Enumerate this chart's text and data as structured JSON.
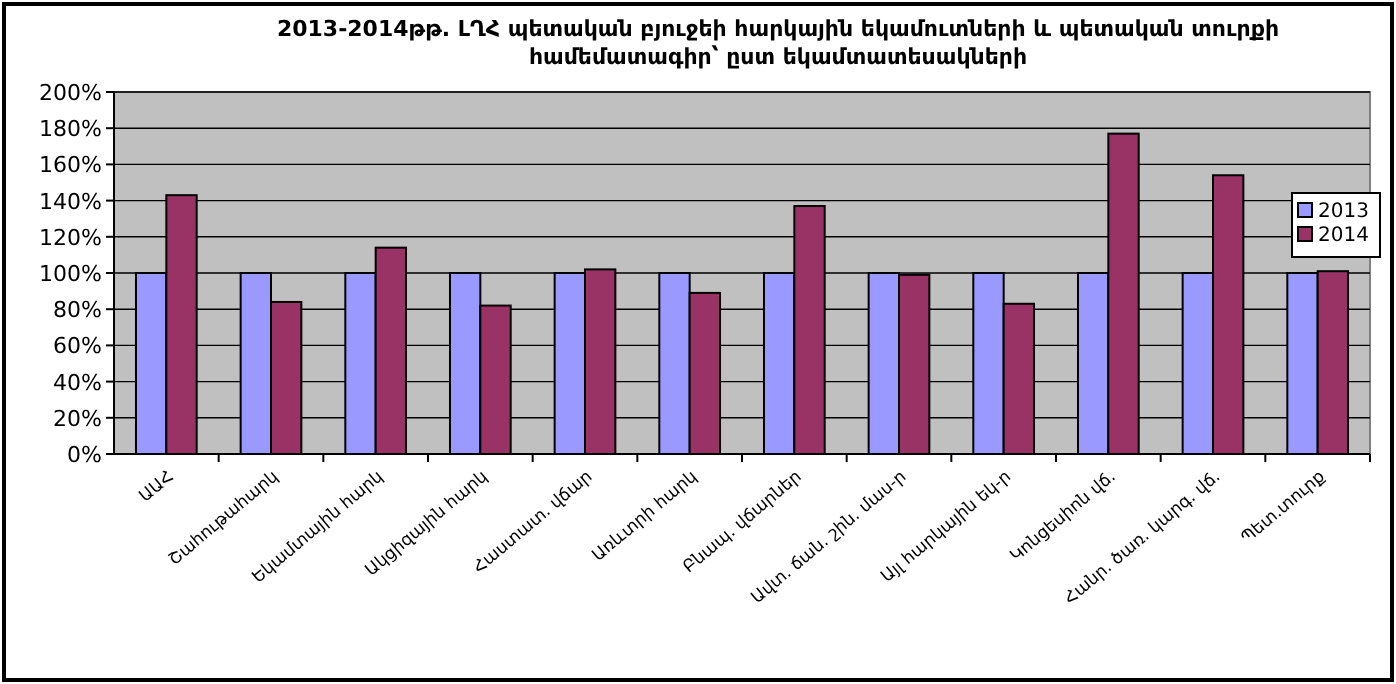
{
  "chart_data": {
    "type": "bar",
    "title": "2013-2014թթ. ԼՂՀ պետական բյուջեի հարկային եկամուտների և պետական տուրքի\nհամեմատագիր՝ ըստ եկամտատեսակների",
    "categories": [
      "ԱԱՀ",
      "Շահութահարկ",
      "Եկամտային հարկ",
      "Ակցիզային հարկ",
      "Հաստատ. վճար",
      "Առևտրի հարկ",
      "Բնապ. վճարներ",
      "Ավտ. ճան. շին. մաս-ր",
      "Այլ հարկային եկ-ր",
      "Կոնցեսիոն վճ.",
      "Հանր. ծառ. կարգ. վճ.",
      "Պետ.տուրք"
    ],
    "series": [
      {
        "name": "2013",
        "color": "#9999ff",
        "values": [
          100,
          100,
          100,
          100,
          100,
          100,
          100,
          100,
          100,
          100,
          100,
          100
        ]
      },
      {
        "name": "2014",
        "color": "#993366",
        "values": [
          143,
          84,
          114,
          82,
          102,
          89,
          137,
          99,
          83,
          177,
          154,
          101
        ]
      }
    ],
    "ylim": [
      0,
      200
    ],
    "yticks": [
      {
        "value": 0,
        "label": "0%"
      },
      {
        "value": 20,
        "label": "20%"
      },
      {
        "value": 40,
        "label": "40%"
      },
      {
        "value": 60,
        "label": "60%"
      },
      {
        "value": 80,
        "label": "80%"
      },
      {
        "value": 100,
        "label": "100%"
      },
      {
        "value": 120,
        "label": "120%"
      },
      {
        "value": 140,
        "label": "140%"
      },
      {
        "value": 160,
        "label": "160%"
      },
      {
        "value": 180,
        "label": "180%"
      },
      {
        "value": 200,
        "label": "200%"
      }
    ],
    "grid": "y",
    "legend": "right"
  }
}
